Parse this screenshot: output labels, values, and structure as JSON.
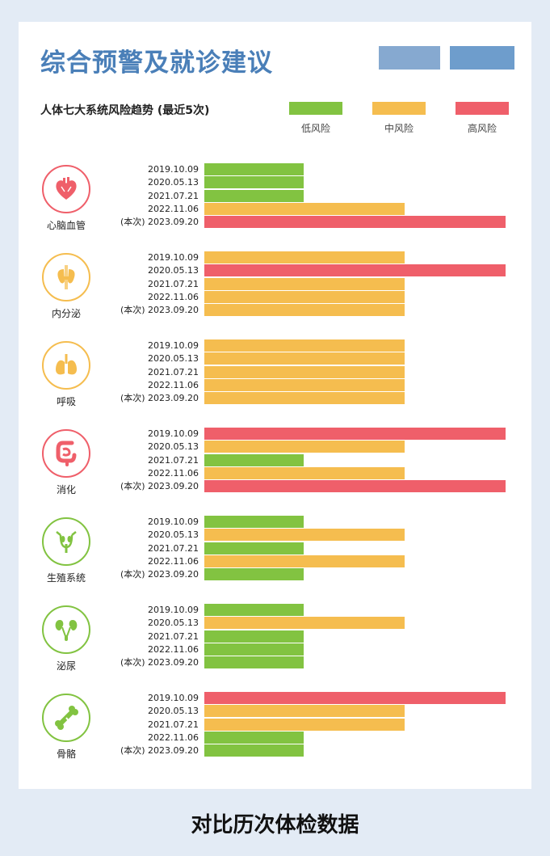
{
  "header": {
    "title": "综合预警及就诊建议"
  },
  "footer": {
    "caption": "对比历次体检数据"
  },
  "colors": {
    "low": "#82c341",
    "mid": "#f5bd4f",
    "high": "#ef5f6a",
    "title": "#4a7fb8"
  },
  "chart_data": {
    "type": "bar",
    "title": "人体七大系统风险趋势 (最近5次)",
    "legend": [
      {
        "key": "low",
        "label": "低风险",
        "value": 1
      },
      {
        "key": "mid",
        "label": "中风险",
        "value": 2
      },
      {
        "key": "high",
        "label": "高风险",
        "value": 3
      }
    ],
    "legend_position": "top-right",
    "current_marker": "(本次)",
    "dates": [
      "2019.10.09",
      "2020.05.13",
      "2021.07.21",
      "2022.11.06",
      "2023.09.20"
    ],
    "xlim": [
      0,
      3
    ],
    "systems": [
      {
        "name": "心脑血管",
        "icon": "heart-icon",
        "ring": "high",
        "values": [
          1,
          1,
          1,
          2,
          3
        ]
      },
      {
        "name": "内分泌",
        "icon": "thyroid-icon",
        "ring": "mid",
        "values": [
          2,
          3,
          2,
          2,
          2
        ]
      },
      {
        "name": "呼吸",
        "icon": "lungs-icon",
        "ring": "mid",
        "values": [
          2,
          2,
          2,
          2,
          2
        ]
      },
      {
        "name": "消化",
        "icon": "intestine-icon",
        "ring": "high",
        "values": [
          3,
          2,
          1,
          2,
          3
        ]
      },
      {
        "name": "生殖系统",
        "icon": "reproductive-icon",
        "ring": "low",
        "values": [
          1,
          2,
          1,
          2,
          1
        ]
      },
      {
        "name": "泌尿",
        "icon": "kidney-icon",
        "ring": "low",
        "values": [
          1,
          2,
          1,
          1,
          1
        ]
      },
      {
        "name": "骨骼",
        "icon": "bone-icon",
        "ring": "low",
        "values": [
          3,
          2,
          2,
          1,
          1
        ]
      }
    ]
  }
}
